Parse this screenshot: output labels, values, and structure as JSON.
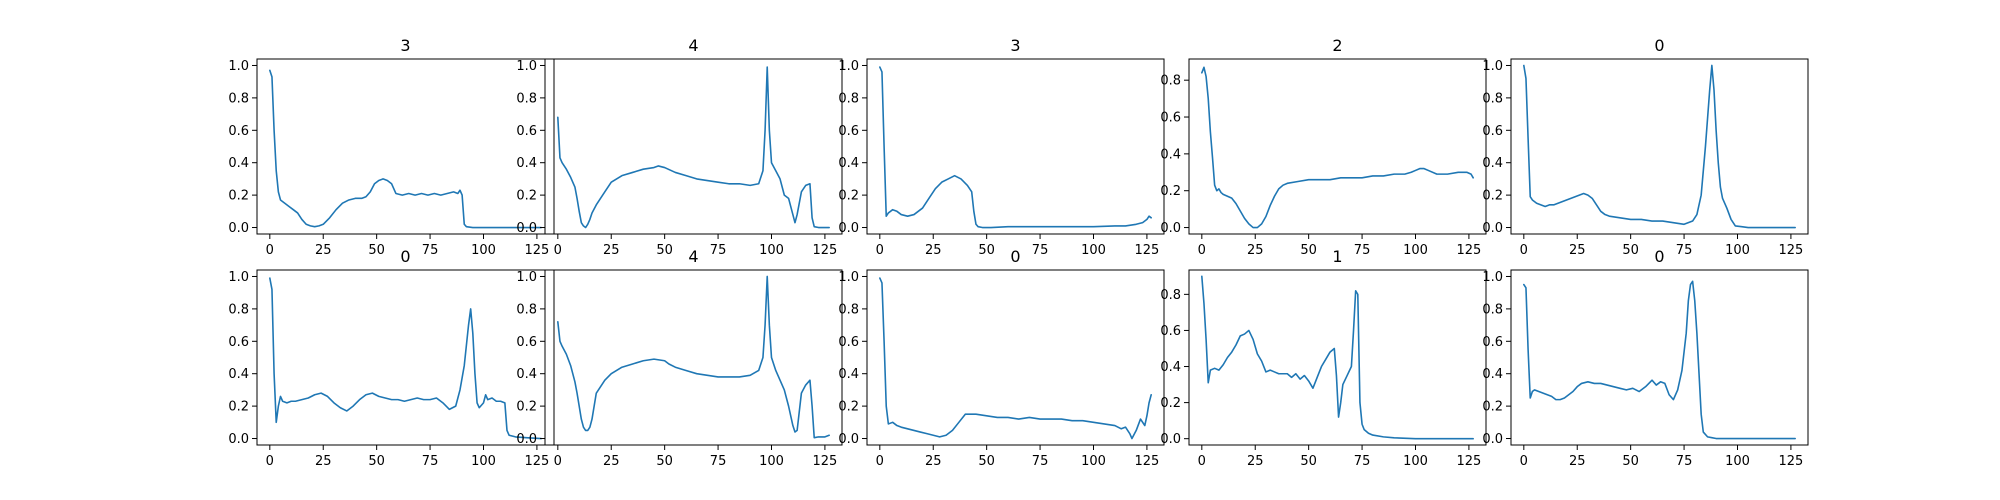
{
  "chart_data": [
    {
      "type": "line",
      "title": "3",
      "color": "#1f77b4",
      "xlim": [
        -6,
        133
      ],
      "ylim": [
        -0.04,
        1.04
      ],
      "xticks": [
        0,
        25,
        50,
        75,
        100,
        125
      ],
      "yticks": [
        0.0,
        0.2,
        0.4,
        0.6,
        0.8,
        1.0
      ],
      "x": [
        0,
        1,
        2,
        3,
        4,
        5,
        7,
        9,
        11,
        13,
        15,
        17,
        19,
        21,
        23,
        25,
        28,
        31,
        34,
        37,
        40,
        43,
        45,
        47,
        49,
        51,
        53,
        55,
        57,
        59,
        62,
        65,
        68,
        71,
        74,
        77,
        80,
        83,
        86,
        88,
        89,
        90,
        91,
        92,
        95,
        100,
        110,
        120,
        127
      ],
      "y": [
        0.97,
        0.93,
        0.6,
        0.35,
        0.22,
        0.17,
        0.15,
        0.13,
        0.11,
        0.09,
        0.05,
        0.02,
        0.01,
        0.005,
        0.01,
        0.02,
        0.06,
        0.11,
        0.15,
        0.17,
        0.18,
        0.18,
        0.19,
        0.22,
        0.27,
        0.29,
        0.3,
        0.29,
        0.27,
        0.21,
        0.2,
        0.21,
        0.2,
        0.21,
        0.2,
        0.21,
        0.2,
        0.21,
        0.22,
        0.21,
        0.23,
        0.2,
        0.02,
        0.005,
        0.0,
        0.0,
        0.0,
        0.0,
        0.0
      ]
    },
    {
      "type": "line",
      "title": "4",
      "color": "#1f77b4",
      "xlim": [
        -6,
        133
      ],
      "ylim": [
        -0.04,
        1.04
      ],
      "xticks": [
        0,
        25,
        50,
        75,
        100,
        125
      ],
      "yticks": [
        0.0,
        0.2,
        0.4,
        0.6,
        0.8,
        1.0
      ],
      "x": [
        0,
        1,
        2,
        4,
        6,
        8,
        9,
        10,
        11,
        12,
        13,
        14,
        15,
        16,
        18,
        20,
        22,
        25,
        30,
        35,
        40,
        45,
        47,
        50,
        55,
        60,
        65,
        70,
        75,
        80,
        85,
        90,
        94,
        96,
        97,
        98,
        99,
        100,
        102,
        104,
        106,
        108,
        110,
        111,
        112,
        114,
        116,
        118,
        119,
        120,
        122,
        125,
        127
      ],
      "y": [
        0.68,
        0.43,
        0.4,
        0.36,
        0.31,
        0.25,
        0.18,
        0.1,
        0.03,
        0.01,
        0.0,
        0.02,
        0.05,
        0.09,
        0.14,
        0.18,
        0.22,
        0.28,
        0.32,
        0.34,
        0.36,
        0.37,
        0.38,
        0.37,
        0.34,
        0.32,
        0.3,
        0.29,
        0.28,
        0.27,
        0.27,
        0.26,
        0.27,
        0.35,
        0.6,
        0.99,
        0.6,
        0.4,
        0.35,
        0.3,
        0.2,
        0.18,
        0.08,
        0.03,
        0.08,
        0.22,
        0.26,
        0.27,
        0.06,
        0.005,
        0.0,
        0.0,
        0.0
      ]
    },
    {
      "type": "line",
      "title": "3",
      "color": "#1f77b4",
      "xlim": [
        -6,
        133
      ],
      "ylim": [
        -0.04,
        1.04
      ],
      "xticks": [
        0,
        25,
        50,
        75,
        100,
        125
      ],
      "yticks": [
        0.0,
        0.2,
        0.4,
        0.6,
        0.8,
        1.0
      ],
      "x": [
        0,
        1,
        2,
        3,
        4,
        6,
        8,
        10,
        13,
        16,
        20,
        23,
        26,
        29,
        32,
        35,
        38,
        41,
        43,
        44,
        45,
        46,
        48,
        52,
        60,
        70,
        80,
        90,
        100,
        110,
        115,
        120,
        123,
        125,
        126,
        127
      ],
      "y": [
        0.99,
        0.96,
        0.5,
        0.07,
        0.09,
        0.11,
        0.1,
        0.08,
        0.07,
        0.08,
        0.12,
        0.18,
        0.24,
        0.28,
        0.3,
        0.32,
        0.3,
        0.26,
        0.22,
        0.1,
        0.02,
        0.005,
        0.0,
        0.0,
        0.005,
        0.005,
        0.005,
        0.005,
        0.005,
        0.01,
        0.01,
        0.02,
        0.03,
        0.05,
        0.07,
        0.06
      ]
    },
    {
      "type": "line",
      "title": "2",
      "color": "#1f77b4",
      "xlim": [
        -6,
        133
      ],
      "ylim": [
        -0.035,
        0.915
      ],
      "xticks": [
        0,
        25,
        50,
        75,
        100,
        125
      ],
      "yticks": [
        0.0,
        0.2,
        0.4,
        0.6,
        0.8
      ],
      "x": [
        0,
        1,
        2,
        3,
        4,
        5,
        6,
        7,
        8,
        9,
        10,
        12,
        14,
        16,
        18,
        20,
        22,
        24,
        26,
        28,
        30,
        32,
        34,
        36,
        38,
        40,
        45,
        50,
        55,
        60,
        65,
        70,
        75,
        80,
        85,
        90,
        95,
        98,
        100,
        102,
        104,
        106,
        110,
        115,
        120,
        124,
        126,
        127
      ],
      "y": [
        0.84,
        0.87,
        0.82,
        0.7,
        0.52,
        0.38,
        0.23,
        0.2,
        0.21,
        0.19,
        0.18,
        0.17,
        0.16,
        0.13,
        0.09,
        0.05,
        0.02,
        0.0,
        0.0,
        0.02,
        0.06,
        0.12,
        0.17,
        0.21,
        0.23,
        0.24,
        0.25,
        0.26,
        0.26,
        0.26,
        0.27,
        0.27,
        0.27,
        0.28,
        0.28,
        0.29,
        0.29,
        0.3,
        0.31,
        0.32,
        0.32,
        0.31,
        0.29,
        0.29,
        0.3,
        0.3,
        0.29,
        0.27
      ]
    },
    {
      "type": "line",
      "title": "0",
      "color": "#1f77b4",
      "xlim": [
        -6,
        133
      ],
      "ylim": [
        -0.04,
        1.04
      ],
      "xticks": [
        0,
        25,
        50,
        75,
        100,
        125
      ],
      "yticks": [
        0.0,
        0.2,
        0.4,
        0.6,
        0.8,
        1.0
      ],
      "x": [
        0,
        1,
        2,
        3,
        4,
        6,
        8,
        10,
        12,
        14,
        16,
        18,
        20,
        22,
        24,
        26,
        28,
        30,
        32,
        34,
        36,
        38,
        40,
        45,
        50,
        55,
        60,
        65,
        70,
        75,
        77,
        79,
        81,
        83,
        85,
        87,
        88,
        89,
        90,
        91,
        92,
        93,
        95,
        97,
        99,
        102,
        105,
        110,
        120,
        127
      ],
      "y": [
        1.0,
        0.92,
        0.55,
        0.19,
        0.17,
        0.15,
        0.14,
        0.13,
        0.14,
        0.14,
        0.15,
        0.16,
        0.17,
        0.18,
        0.19,
        0.2,
        0.21,
        0.2,
        0.18,
        0.14,
        0.1,
        0.08,
        0.07,
        0.06,
        0.05,
        0.05,
        0.04,
        0.04,
        0.03,
        0.02,
        0.03,
        0.04,
        0.08,
        0.2,
        0.5,
        0.85,
        1.0,
        0.85,
        0.6,
        0.4,
        0.25,
        0.18,
        0.12,
        0.05,
        0.01,
        0.005,
        0.0,
        0.0,
        0.0,
        0.0
      ]
    },
    {
      "type": "line",
      "title": "0",
      "color": "#1f77b4",
      "xlim": [
        -6,
        133
      ],
      "ylim": [
        -0.04,
        1.04
      ],
      "xticks": [
        0,
        25,
        50,
        75,
        100,
        125
      ],
      "yticks": [
        0.0,
        0.2,
        0.4,
        0.6,
        0.8,
        1.0
      ],
      "x": [
        0,
        1,
        2,
        3,
        4,
        5,
        6,
        8,
        10,
        12,
        15,
        18,
        21,
        24,
        27,
        30,
        33,
        36,
        39,
        42,
        45,
        48,
        51,
        54,
        57,
        60,
        63,
        66,
        69,
        72,
        75,
        78,
        81,
        84,
        87,
        89,
        91,
        93,
        94,
        95,
        96,
        97,
        98,
        100,
        101,
        102,
        104,
        106,
        108,
        110,
        111,
        112,
        115,
        120,
        127
      ],
      "y": [
        0.99,
        0.92,
        0.4,
        0.1,
        0.2,
        0.26,
        0.23,
        0.22,
        0.23,
        0.23,
        0.24,
        0.25,
        0.27,
        0.28,
        0.26,
        0.22,
        0.19,
        0.17,
        0.2,
        0.24,
        0.27,
        0.28,
        0.26,
        0.25,
        0.24,
        0.24,
        0.23,
        0.24,
        0.25,
        0.24,
        0.24,
        0.25,
        0.22,
        0.18,
        0.2,
        0.3,
        0.45,
        0.7,
        0.8,
        0.65,
        0.4,
        0.22,
        0.19,
        0.22,
        0.27,
        0.24,
        0.25,
        0.23,
        0.23,
        0.22,
        0.05,
        0.02,
        0.01,
        0.005,
        0.0
      ]
    },
    {
      "type": "line",
      "title": "4",
      "color": "#1f77b4",
      "xlim": [
        -6,
        133
      ],
      "ylim": [
        -0.04,
        1.04
      ],
      "xticks": [
        0,
        25,
        50,
        75,
        100,
        125
      ],
      "yticks": [
        0.0,
        0.2,
        0.4,
        0.6,
        0.8,
        1.0
      ],
      "x": [
        0,
        1,
        2,
        4,
        6,
        8,
        9,
        10,
        11,
        12,
        13,
        14,
        15,
        16,
        17,
        18,
        20,
        22,
        25,
        30,
        35,
        40,
        45,
        50,
        52,
        55,
        60,
        65,
        70,
        75,
        80,
        85,
        90,
        94,
        96,
        97,
        98,
        99,
        100,
        102,
        104,
        106,
        108,
        110,
        111,
        112,
        114,
        116,
        118,
        119,
        120,
        122,
        125,
        127
      ],
      "y": [
        0.72,
        0.6,
        0.57,
        0.52,
        0.45,
        0.35,
        0.28,
        0.2,
        0.12,
        0.07,
        0.05,
        0.05,
        0.07,
        0.12,
        0.2,
        0.28,
        0.32,
        0.36,
        0.4,
        0.44,
        0.46,
        0.48,
        0.49,
        0.48,
        0.46,
        0.44,
        0.42,
        0.4,
        0.39,
        0.38,
        0.38,
        0.38,
        0.39,
        0.42,
        0.5,
        0.7,
        1.0,
        0.7,
        0.5,
        0.42,
        0.36,
        0.3,
        0.2,
        0.08,
        0.04,
        0.05,
        0.28,
        0.33,
        0.36,
        0.2,
        0.005,
        0.01,
        0.01,
        0.02
      ]
    },
    {
      "type": "line",
      "title": "0",
      "color": "#1f77b4",
      "xlim": [
        -6,
        133
      ],
      "ylim": [
        -0.04,
        1.04
      ],
      "xticks": [
        0,
        25,
        50,
        75,
        100,
        125
      ],
      "yticks": [
        0.0,
        0.2,
        0.4,
        0.6,
        0.8,
        1.0
      ],
      "x": [
        0,
        1,
        2,
        3,
        4,
        6,
        8,
        10,
        13,
        16,
        19,
        22,
        25,
        28,
        31,
        34,
        37,
        40,
        45,
        50,
        55,
        60,
        65,
        70,
        75,
        80,
        85,
        90,
        95,
        100,
        105,
        110,
        113,
        115,
        117,
        118,
        120,
        122,
        124,
        125,
        126,
        127
      ],
      "y": [
        0.99,
        0.96,
        0.6,
        0.2,
        0.09,
        0.1,
        0.08,
        0.07,
        0.06,
        0.05,
        0.04,
        0.03,
        0.02,
        0.01,
        0.02,
        0.05,
        0.1,
        0.15,
        0.15,
        0.14,
        0.13,
        0.13,
        0.12,
        0.13,
        0.12,
        0.12,
        0.12,
        0.11,
        0.11,
        0.1,
        0.09,
        0.08,
        0.06,
        0.07,
        0.03,
        0.0,
        0.05,
        0.12,
        0.08,
        0.14,
        0.22,
        0.27
      ]
    },
    {
      "type": "line",
      "title": "1",
      "color": "#1f77b4",
      "xlim": [
        -6,
        133
      ],
      "ylim": [
        -0.035,
        0.935
      ],
      "xticks": [
        0,
        25,
        50,
        75,
        100,
        125
      ],
      "yticks": [
        0.0,
        0.2,
        0.4,
        0.6,
        0.8
      ],
      "x": [
        0,
        1,
        2,
        3,
        4,
        6,
        8,
        10,
        12,
        14,
        16,
        18,
        20,
        22,
        24,
        26,
        28,
        30,
        32,
        34,
        36,
        38,
        40,
        42,
        44,
        46,
        48,
        50,
        52,
        54,
        56,
        58,
        60,
        62,
        63,
        64,
        65,
        66,
        68,
        70,
        71,
        72,
        73,
        74,
        75,
        76,
        78,
        80,
        85,
        90,
        100,
        110,
        120,
        127
      ],
      "y": [
        0.9,
        0.75,
        0.55,
        0.31,
        0.38,
        0.39,
        0.38,
        0.41,
        0.45,
        0.48,
        0.52,
        0.57,
        0.58,
        0.6,
        0.55,
        0.47,
        0.43,
        0.37,
        0.38,
        0.37,
        0.36,
        0.36,
        0.36,
        0.34,
        0.36,
        0.33,
        0.35,
        0.32,
        0.28,
        0.34,
        0.4,
        0.44,
        0.48,
        0.5,
        0.35,
        0.12,
        0.2,
        0.3,
        0.35,
        0.4,
        0.6,
        0.82,
        0.8,
        0.2,
        0.08,
        0.05,
        0.03,
        0.02,
        0.01,
        0.005,
        0.0,
        0.0,
        0.0,
        0.0
      ]
    },
    {
      "type": "line",
      "title": "0",
      "color": "#1f77b4",
      "xlim": [
        -6,
        133
      ],
      "ylim": [
        -0.04,
        1.04
      ],
      "xticks": [
        0,
        25,
        50,
        75,
        100,
        125
      ],
      "yticks": [
        0.0,
        0.2,
        0.4,
        0.6,
        0.8,
        1.0
      ],
      "x": [
        0,
        1,
        2,
        3,
        4,
        5,
        7,
        9,
        11,
        13,
        15,
        17,
        19,
        21,
        23,
        25,
        27,
        30,
        33,
        36,
        39,
        42,
        45,
        48,
        51,
        54,
        57,
        60,
        62,
        64,
        66,
        68,
        70,
        72,
        74,
        76,
        77,
        78,
        79,
        80,
        81,
        82,
        83,
        84,
        86,
        88,
        90,
        95,
        100,
        110,
        120,
        127
      ],
      "y": [
        0.95,
        0.93,
        0.55,
        0.25,
        0.29,
        0.3,
        0.29,
        0.28,
        0.27,
        0.26,
        0.24,
        0.24,
        0.25,
        0.27,
        0.29,
        0.32,
        0.34,
        0.35,
        0.34,
        0.34,
        0.33,
        0.32,
        0.31,
        0.3,
        0.31,
        0.29,
        0.32,
        0.36,
        0.33,
        0.35,
        0.34,
        0.27,
        0.24,
        0.3,
        0.42,
        0.65,
        0.85,
        0.95,
        0.97,
        0.85,
        0.65,
        0.4,
        0.15,
        0.04,
        0.01,
        0.005,
        0.0,
        0.0,
        0.0,
        0.0,
        0.0,
        0.0
      ]
    }
  ]
}
